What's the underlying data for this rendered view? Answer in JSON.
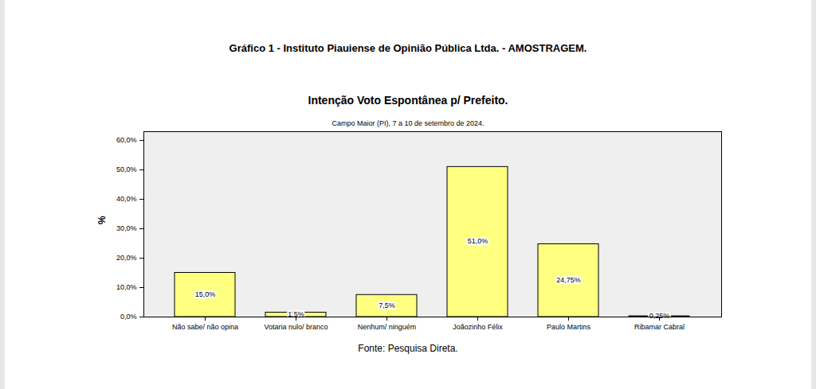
{
  "chart_data": {
    "type": "bar",
    "title": "Gráfico   1  -  Instituto Piauiense de Opinião Pública Ltda. - AMOSTRAGEM.",
    "subtitle": "Intenção Voto Espontânea p/ Prefeito.",
    "annotation": "Campo Maior (PI), 7 a 10 de setembro de 2024.",
    "caption": "Fonte: Pesquisa Direta.",
    "y_label": "%",
    "categories": [
      "Não sabe/ não opina",
      "Votaria nulo/ branco",
      "Nenhum/ ninguém",
      "Joãozinho Félix",
      "Paulo Martins",
      "Ribamar Cabral"
    ],
    "values": [
      15.0,
      1.5,
      7.5,
      51.0,
      24.75,
      0.25
    ],
    "value_labels": [
      "15,0%",
      "1,5%",
      "7,5%",
      "51,0%",
      "24,75%",
      "0,25%"
    ],
    "color": "#ffff80",
    "ylim": [
      0,
      63
    ],
    "yticks": [
      {
        "value": 0,
        "label": "0,0%"
      },
      {
        "value": 10,
        "label": "10,0%"
      },
      {
        "value": 20,
        "label": "20,0%"
      },
      {
        "value": 30,
        "label": "30,0%"
      },
      {
        "value": 40,
        "label": "40,0%"
      },
      {
        "value": 50,
        "label": "50,0%"
      },
      {
        "value": 60,
        "label": "60,0%"
      }
    ],
    "grid": false,
    "data_labels": true
  }
}
